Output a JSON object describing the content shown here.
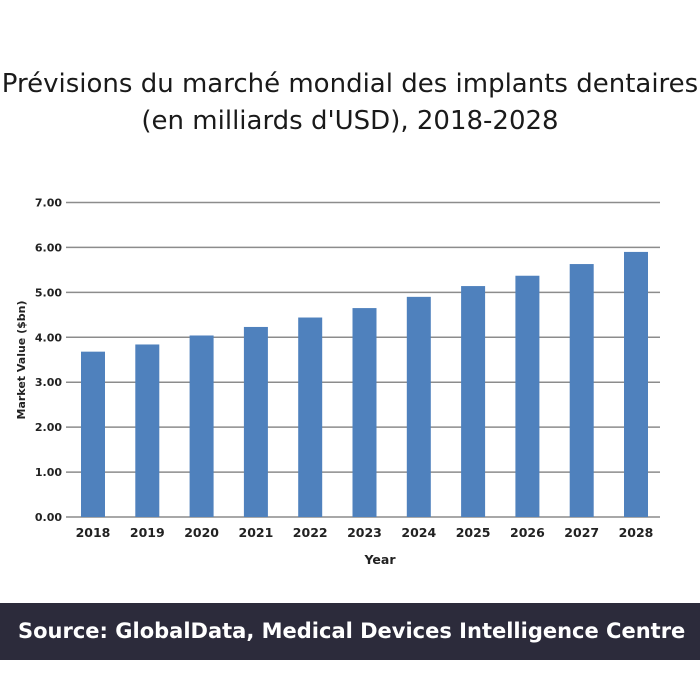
{
  "chart_data": {
    "type": "bar",
    "title": "Prévisions du marché mondial des implants dentaires (en milliards d'USD), 2018-2028",
    "xlabel": "Year",
    "ylabel": "Market Value ($bn)",
    "categories": [
      "2018",
      "2019",
      "2020",
      "2021",
      "2022",
      "2023",
      "2024",
      "2025",
      "2026",
      "2027",
      "2028"
    ],
    "values": [
      3.68,
      3.84,
      4.04,
      4.23,
      4.44,
      4.65,
      4.9,
      5.14,
      5.37,
      5.63,
      5.9
    ],
    "ylim": [
      0,
      7
    ],
    "yticks": [
      "0.00",
      "1.00",
      "2.00",
      "3.00",
      "4.00",
      "5.00",
      "6.00",
      "7.00"
    ],
    "grid": true,
    "bar_color": "#4f81bd"
  },
  "footer": {
    "source": "Source: GlobalData, Medical Devices Intelligence Centre"
  }
}
